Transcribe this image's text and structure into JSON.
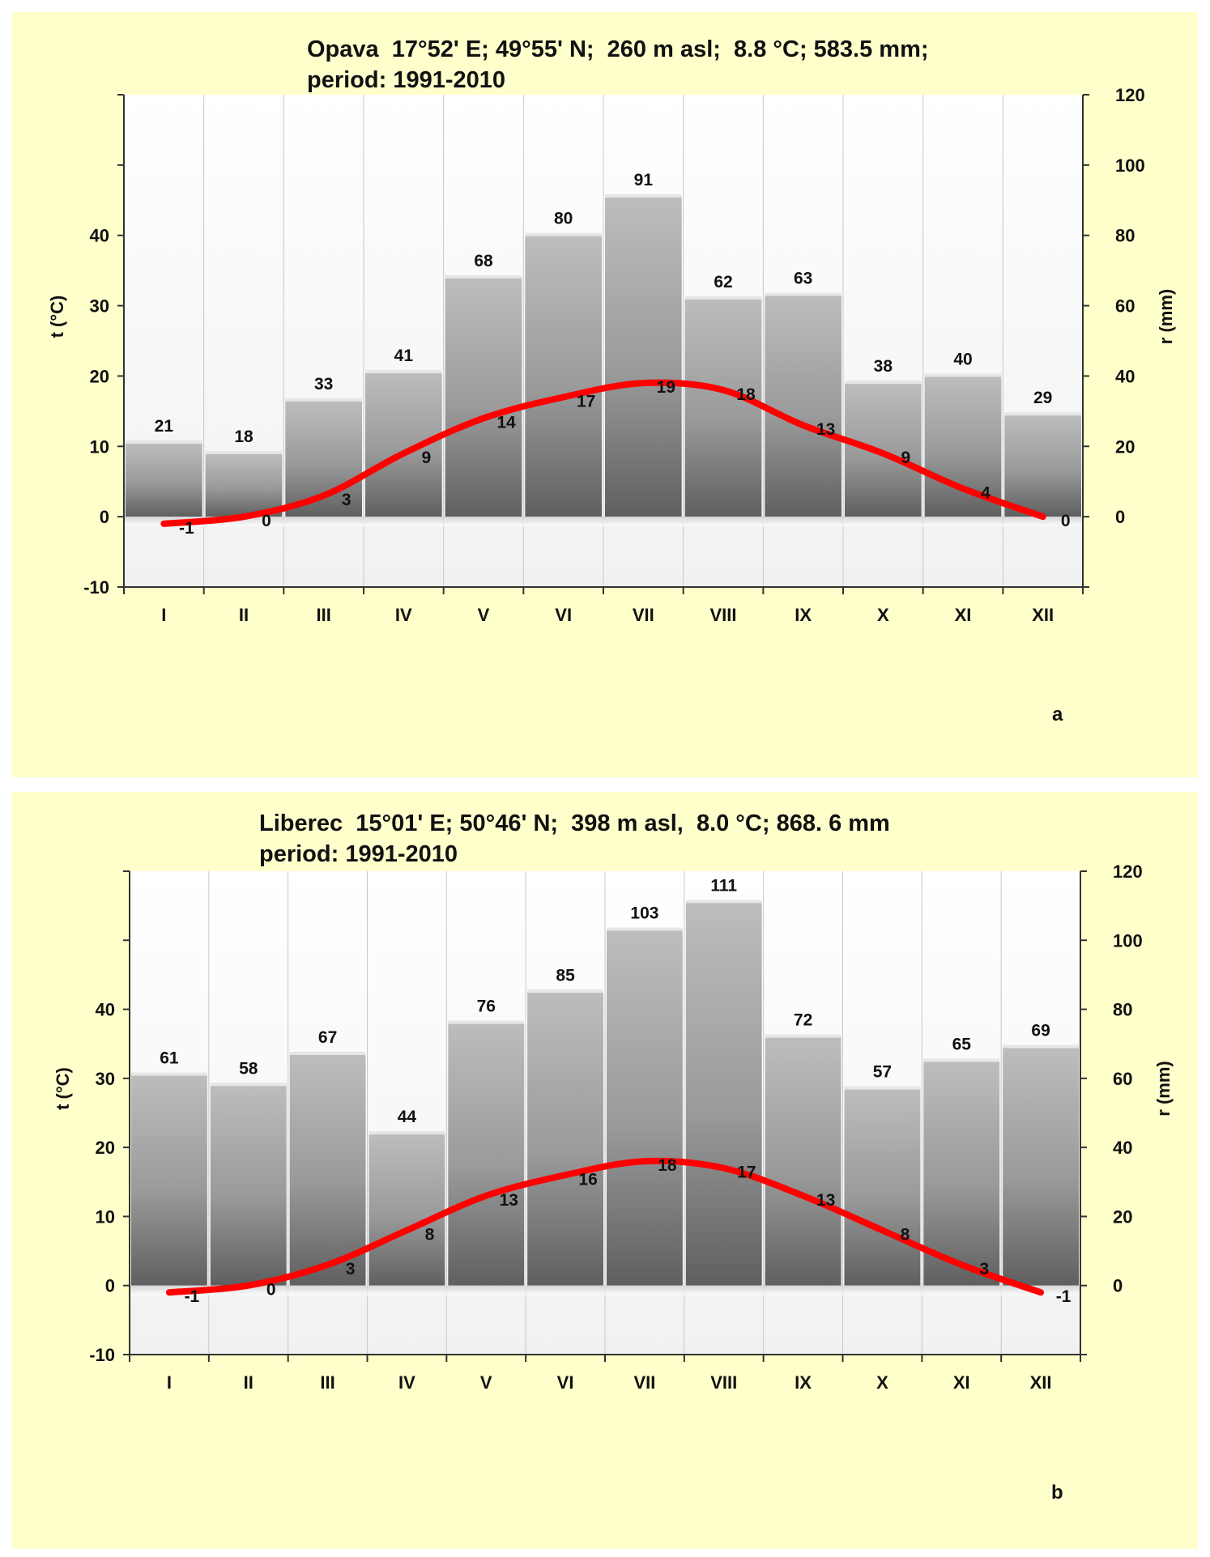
{
  "chart_data": [
    {
      "type": "bar",
      "panel": "a",
      "title_line1": "Opava  17°52' E; 49°55' N;  260 m asl;  8.8 °C; 583.5 mm;",
      "title_line2": "period: 1991-2010",
      "categories": [
        "I",
        "II",
        "III",
        "IV",
        "V",
        "VI",
        "VII",
        "VIII",
        "IX",
        "X",
        "XI",
        "XII"
      ],
      "series": [
        {
          "name": "precipitation",
          "axis": "right",
          "kind": "bar",
          "values": [
            21,
            18,
            33,
            41,
            68,
            80,
            91,
            62,
            63,
            38,
            40,
            29
          ],
          "labels": [
            "21",
            "18",
            "33",
            "41",
            "68",
            "80",
            "91",
            "62",
            "63",
            "38",
            "40",
            "29"
          ]
        },
        {
          "name": "temperature",
          "axis": "left",
          "kind": "line",
          "color": "#ff0000",
          "values": [
            -1,
            0,
            3,
            9,
            14,
            17,
            19,
            18,
            13,
            9,
            4,
            0
          ],
          "labels": [
            "-1",
            "0",
            "3",
            "9",
            "14",
            "17",
            "19",
            "18",
            "13",
            "9",
            "4",
            "0"
          ]
        }
      ],
      "ylabel_left": "t (°C)",
      "ylabel_right": "r (mm)",
      "ylim_left": [
        -10,
        60
      ],
      "ylim_right": [
        -20,
        120
      ],
      "left_ticks": [
        "-10",
        "0",
        "10",
        "20",
        "30",
        "40"
      ],
      "right_ticks": [
        "0",
        "20",
        "40",
        "60",
        "80",
        "100",
        "120"
      ],
      "panel_letter": "a"
    },
    {
      "type": "bar",
      "panel": "b",
      "title_line1": "Liberec  15°01' E; 50°46' N;  398 m asl,  8.0 °C; 868. 6 mm",
      "title_line2": "period: 1991-2010",
      "categories": [
        "I",
        "II",
        "III",
        "IV",
        "V",
        "VI",
        "VII",
        "VIII",
        "IX",
        "X",
        "XI",
        "XII"
      ],
      "series": [
        {
          "name": "precipitation",
          "axis": "right",
          "kind": "bar",
          "values": [
            61,
            58,
            67,
            44,
            76,
            85,
            103,
            111,
            72,
            57,
            65,
            69
          ],
          "labels": [
            "61",
            "58",
            "67",
            "44",
            "76",
            "85",
            "103",
            "111",
            "72",
            "57",
            "65",
            "69"
          ]
        },
        {
          "name": "temperature",
          "axis": "left",
          "kind": "line",
          "color": "#ff0000",
          "values": [
            -1,
            0,
            3,
            8,
            13,
            16,
            18,
            17,
            13,
            8,
            3,
            -1
          ],
          "labels": [
            "-1",
            "0",
            "3",
            "8",
            "13",
            "16",
            "18",
            "17",
            "13",
            "8",
            "3",
            "-1"
          ]
        }
      ],
      "ylabel_left": "t (°C)",
      "ylabel_right": "r (mm)",
      "ylim_left": [
        -10,
        60
      ],
      "ylim_right": [
        -20,
        120
      ],
      "left_ticks": [
        "-10",
        "0",
        "10",
        "20",
        "30",
        "40"
      ],
      "right_ticks": [
        "0",
        "20",
        "40",
        "60",
        "80",
        "100",
        "120"
      ],
      "panel_letter": "b"
    }
  ]
}
